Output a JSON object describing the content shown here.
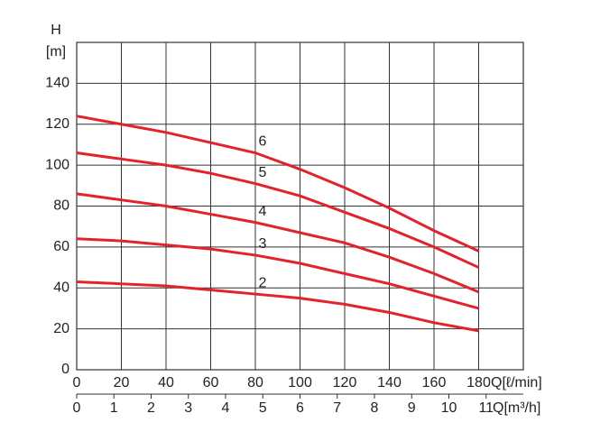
{
  "chart_data": {
    "type": "line",
    "y_label_top": "H",
    "y_label": "[m]",
    "x_label": "Q[ℓ/min]",
    "x2_label": "Q[m³/h]",
    "x": [
      0,
      20,
      40,
      60,
      80,
      100,
      120,
      140,
      160,
      180
    ],
    "xlim": [
      0,
      200
    ],
    "xticks": [
      0,
      20,
      40,
      60,
      80,
      100,
      120,
      140,
      160,
      180
    ],
    "x2lim": [
      0,
      12
    ],
    "x2ticks": [
      0,
      1,
      2,
      3,
      4,
      5,
      6,
      7,
      8,
      9,
      10,
      11
    ],
    "ylim": [
      0,
      160
    ],
    "yticks": [
      0,
      20,
      40,
      60,
      80,
      100,
      120,
      140
    ],
    "grid": true,
    "series": [
      {
        "name": "2",
        "color": "#e3232c",
        "values": [
          43,
          42,
          41,
          39,
          37,
          35,
          32,
          28,
          23,
          19
        ]
      },
      {
        "name": "3",
        "color": "#e3232c",
        "values": [
          64,
          63,
          61,
          59,
          56,
          52,
          47,
          42,
          36,
          30
        ]
      },
      {
        "name": "4",
        "color": "#e3232c",
        "values": [
          86,
          83,
          80,
          76,
          72,
          67,
          62,
          55,
          47,
          38
        ]
      },
      {
        "name": "5",
        "color": "#e3232c",
        "values": [
          106,
          103,
          100,
          96,
          91,
          85,
          77,
          69,
          60,
          50
        ]
      },
      {
        "name": "6",
        "color": "#e3232c",
        "values": [
          124,
          120,
          116,
          111,
          106,
          98,
          89,
          79,
          68,
          58
        ]
      }
    ]
  }
}
